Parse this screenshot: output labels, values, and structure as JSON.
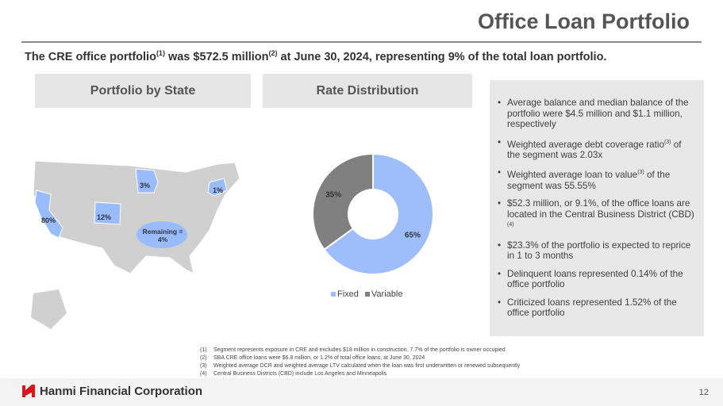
{
  "title": "Office Loan Portfolio",
  "subtitle": {
    "a": "The CRE office portfolio",
    "s1": "(1)",
    "b": " was $572.5 million",
    "s2": "(2)",
    "c": " at June 30, 2024, representing 9% of the total loan portfolio."
  },
  "panels": {
    "state": "Portfolio by State",
    "rate": "Rate Distribution"
  },
  "map": {
    "labels": {
      "ca": "80%",
      "co": "12%",
      "mn": "3%",
      "ny": "1%",
      "remaining": "Remaining =",
      "remaining_pct": "4%"
    },
    "highlight_color": "#99bbff",
    "base_color": "#d0d0d0"
  },
  "chart_data": {
    "type": "pie",
    "title": "Rate Distribution",
    "categories": [
      "Fixed",
      "Variable"
    ],
    "values": [
      65,
      35
    ],
    "labels": [
      "65%",
      "35%"
    ],
    "colors": [
      "#9dbdfb",
      "#808080"
    ],
    "legend": "bottom"
  },
  "bullets": [
    {
      "t": "Average balance and median balance of the portfolio were $4.5 million and $1.1 million, respectively"
    },
    {
      "t": "Weighted average debt coverage ratio",
      "s": "(3)",
      "u": " of the segment was 2.03x"
    },
    {
      "t": "Weighted average loan to value",
      "s": "(3)",
      "u": " of the segment was 55.55%"
    },
    {
      "t": "$52.3 million, or 9.1%, of the office loans are located in the Central Business District (CBD)",
      "s": "(4)",
      "u": ""
    },
    {
      "t": "$23.3% of the portfolio is expected to reprice in 1 to 3 months"
    },
    {
      "t": "Delinquent loans represented 0.14% of the office portfolio"
    },
    {
      "t": "Criticized loans represented 1.52% of the office portfolio"
    }
  ],
  "footnotes": [
    {
      "n": "(1)",
      "t": "Segment represents exposure in CRE and excludes $18 million in construction. 7.7% of the portfolio is owner occupied"
    },
    {
      "n": "(2)",
      "t": "SBA CRE office loans were $6.8 million, or 1.2% of total office loans, at June 30, 2024"
    },
    {
      "n": "(3)",
      "t": "Weighted average DCR and weighted average LTV calculated when the loan was first underwritten or renewed subsequently"
    },
    {
      "n": "(4)",
      "t": "Central Business Districts (CBD) include Los Angeles and Minneapolis"
    }
  ],
  "footer": {
    "company": "Hanmi Financial Corporation",
    "page": "12"
  }
}
